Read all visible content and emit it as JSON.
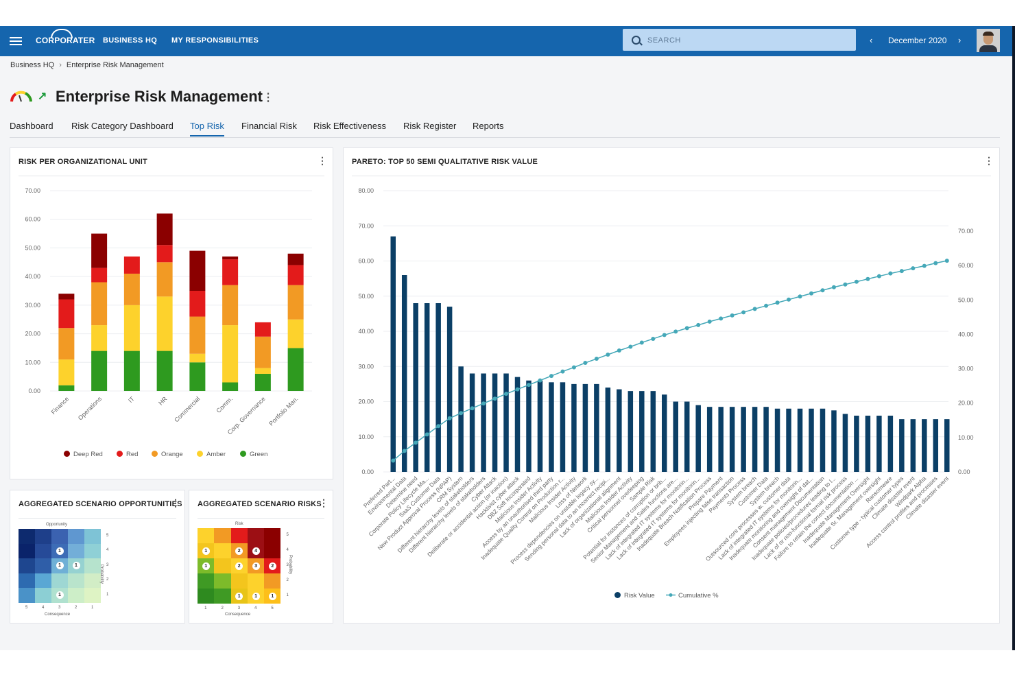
{
  "topbar": {
    "brand": "CORPORATER",
    "nav": [
      "BUSINESS HQ",
      "MY RESPONSIBILITIES"
    ],
    "search_placeholder": "SEARCH",
    "date": "December 2020",
    "prev_icon": "chevron-left-icon",
    "next_icon": "chevron-right-icon"
  },
  "breadcrumb": {
    "root": "Business HQ",
    "current": "Enterprise Risk Management"
  },
  "page": {
    "title": "Enterprise Risk Management"
  },
  "tabs": [
    {
      "label": "Dashboard",
      "active": false
    },
    {
      "label": "Risk Category Dashboard",
      "active": false
    },
    {
      "label": "Top Risk",
      "active": true
    },
    {
      "label": "Financial Risk",
      "active": false
    },
    {
      "label": "Risk Effectiveness",
      "active": false
    },
    {
      "label": "Risk Register",
      "active": false
    },
    {
      "label": "Reports",
      "active": false
    }
  ],
  "colors": {
    "brand": "#1565ad",
    "deep_red": "#8b0000",
    "red": "#e31b1b",
    "orange": "#f29a24",
    "amber": "#fdd22c",
    "green": "#2e9a1f",
    "pareto_bar": "#0b3f66",
    "pareto_line": "#45a8b8"
  },
  "cards": {
    "org_unit": {
      "title": "RISK PER ORGANIZATIONAL UNIT"
    },
    "pareto": {
      "title": "PARETO: TOP 50 SEMI QUALITATIVE RISK VALUE"
    },
    "opportunities": {
      "title": "AGGREGATED SCENARIO OPPORTUNITIES",
      "top_label": "Opportunity",
      "side_label": "Probability",
      "bottom_label": "Consequence",
      "x_ticks": [
        "5",
        "4",
        "3",
        "2",
        "1"
      ],
      "y_ticks": [
        "5",
        "4",
        "3",
        "2",
        "1"
      ],
      "badges": [
        {
          "row": 1,
          "col": 2,
          "n": "1"
        },
        {
          "row": 2,
          "col": 2,
          "n": "1"
        },
        {
          "row": 2,
          "col": 3,
          "n": "1"
        },
        {
          "row": 4,
          "col": 2,
          "n": "1"
        }
      ]
    },
    "risks": {
      "title": "AGGREGATED SCENARIO RISKS",
      "top_label": "Risk",
      "side_label": "Probability",
      "bottom_label": "Consequence",
      "x_ticks": [
        "1",
        "2",
        "3",
        "4",
        "5"
      ],
      "y_ticks": [
        "5",
        "4",
        "3",
        "2",
        "1"
      ],
      "badges": [
        {
          "row": 1,
          "col": 0,
          "n": "1"
        },
        {
          "row": 1,
          "col": 2,
          "n": "2"
        },
        {
          "row": 1,
          "col": 3,
          "n": "4"
        },
        {
          "row": 2,
          "col": 0,
          "n": "1"
        },
        {
          "row": 2,
          "col": 2,
          "n": "2"
        },
        {
          "row": 2,
          "col": 3,
          "n": "3"
        },
        {
          "row": 2,
          "col": 4,
          "n": "2"
        },
        {
          "row": 4,
          "col": 2,
          "n": "1"
        },
        {
          "row": 4,
          "col": 3,
          "n": "1"
        },
        {
          "row": 4,
          "col": 4,
          "n": "1"
        }
      ]
    }
  },
  "chart_data": [
    {
      "type": "bar",
      "stacked": true,
      "title": "RISK PER ORGANIZATIONAL UNIT",
      "categories": [
        "Finance",
        "Operations",
        "IT",
        "HR",
        "Commercial",
        "Comm.",
        "Corp. Governance",
        "Portfolio Man."
      ],
      "series": [
        {
          "name": "Green",
          "values": [
            2,
            14,
            14,
            14,
            10,
            3,
            6,
            15
          ]
        },
        {
          "name": "Amber",
          "values": [
            9,
            9,
            16,
            19,
            3,
            20,
            2,
            10
          ]
        },
        {
          "name": "Orange",
          "values": [
            11,
            15,
            11,
            12,
            13,
            14,
            11,
            12
          ]
        },
        {
          "name": "Red",
          "values": [
            10,
            5,
            6,
            6,
            9,
            9,
            5,
            7
          ]
        },
        {
          "name": "Deep Red",
          "values": [
            2,
            12,
            0,
            11,
            14,
            1,
            0,
            4
          ]
        }
      ],
      "ylim": [
        0,
        70
      ],
      "yticks": [
        "0.00",
        "10.00",
        "20.00",
        "30.00",
        "40.00",
        "50.00",
        "60.00",
        "70.00"
      ],
      "grid": true,
      "legend_position": "bottom"
    },
    {
      "type": "bar",
      "title": "PARETO: TOP 50 SEMI QUALITATIVE RISK VALUE",
      "categories": [
        "Preferred Part...",
        "Environmental Data",
        "Determine need",
        "Corporate Policy Lifecycle Ma...",
        "SaaS Customer Data",
        "New Product Approval Process (NPAP)",
        "CRM System",
        "Different hierarchy levels of stakeholders",
        "Different hierarchy levels of stakeholders",
        "Cyber Attack",
        "Deliberate or accidental action (or inaction)",
        "Hacktivist cyber attack",
        "DBZ Soft Incorporated",
        "Malicious Insider Activity",
        "Access by an unauthorised third party",
        "Inadequate Quality Control on Production r...",
        "Malicious Insider Activity",
        "Loss of Network",
        "Process dependencies on unstable legacy sy...",
        "Sending personal data to an incorrect recipi...",
        "Lack of organizational alignment",
        "Malicious Insider Activity",
        "Critical personnel overleeping",
        "Sample Risk",
        "Potential for instances of corruption or brib...",
        "Senior Management and Sales functions are...",
        "Lack of integrated IT systems for monitorin...",
        "Lack of integrated IT systems for monitorin...",
        "Inadequate Breach Notification Process",
        "Prepare Payment",
        "Employees injecting false transaction",
        "Payments Process",
        "System breach",
        "Customer Data",
        "System breach",
        "Outsourced core processes w. customer data",
        "Lack of integrated IT systems for monitorin...",
        "Inadequate monitoring and oversight of dat...",
        "Consent management Documentation",
        "Inadequate policies/procedures leading to l...",
        "Lack of or non-functional formal risk process",
        "Failure to retain the correct documentation ...",
        "Inadequate Management Oversight",
        "Inadequate Sr. Management oversight",
        "Ransomware",
        "Customer type - typical customer types",
        "Climate disaster event",
        "Windpark Alpha",
        "Access control profiles and processes",
        "Climate disaster event"
      ],
      "series": [
        {
          "name": "Risk Value",
          "type": "bar",
          "axis": "left",
          "values": [
            67,
            56,
            48,
            48,
            48,
            47,
            30,
            28,
            28,
            28,
            28,
            27,
            26,
            26,
            25.5,
            25.5,
            25,
            25,
            25,
            24,
            23.5,
            23,
            23,
            23,
            22,
            20,
            20,
            19,
            18.5,
            18.5,
            18.5,
            18.5,
            18.5,
            18.5,
            18,
            18,
            18,
            18,
            18,
            17.5,
            16.5,
            16,
            16,
            16,
            16,
            15,
            15,
            15,
            15,
            15
          ]
        },
        {
          "name": "Cumulative %",
          "type": "line",
          "axis": "right",
          "values": [
            3.3,
            6.1,
            8.5,
            10.9,
            13.3,
            15.6,
            17.1,
            18.5,
            19.9,
            21.3,
            22.7,
            24.0,
            25.3,
            26.6,
            27.9,
            29.2,
            30.4,
            31.7,
            32.9,
            34.1,
            35.3,
            36.4,
            37.6,
            38.7,
            39.8,
            40.8,
            41.8,
            42.7,
            43.7,
            44.6,
            45.5,
            46.4,
            47.4,
            48.3,
            49.2,
            50.1,
            51.0,
            51.9,
            52.8,
            53.7,
            54.5,
            55.3,
            56.1,
            56.9,
            57.7,
            58.4,
            59.2,
            59.9,
            60.7,
            61.4
          ]
        }
      ],
      "ylim": [
        0,
        80
      ],
      "yticks": [
        "0.00",
        "10.00",
        "20.00",
        "30.00",
        "40.00",
        "50.00",
        "60.00",
        "70.00",
        "80.00"
      ],
      "y2lim": [
        0,
        70
      ],
      "y2ticks": [
        "0.00",
        "10.00",
        "20.00",
        "30.00",
        "40.00",
        "50.00",
        "60.00",
        "70.00"
      ],
      "grid": true,
      "legend_position": "bottom"
    }
  ]
}
